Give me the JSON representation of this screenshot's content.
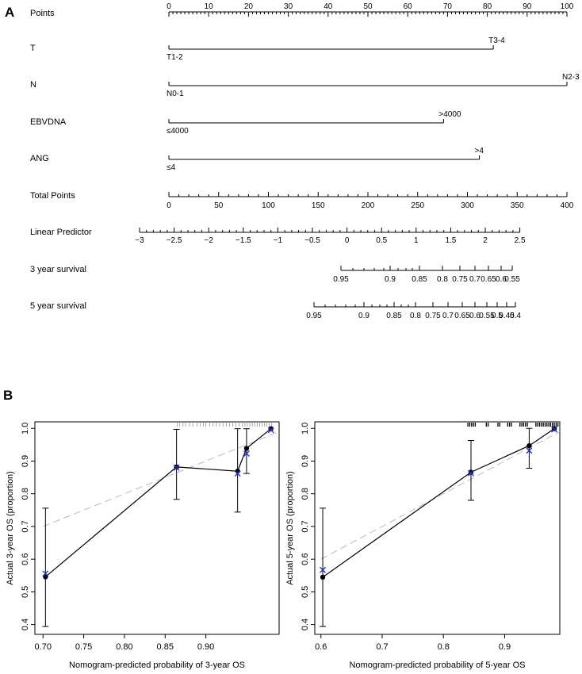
{
  "panel_a_label": "A",
  "panel_b_label": "B",
  "chart_data": [
    {
      "type": "nomogram",
      "panel": "A",
      "scales": [
        {
          "name": "Points",
          "range": [
            0,
            100
          ],
          "labels": [
            "0",
            "10",
            "20",
            "30",
            "40",
            "50",
            "60",
            "70",
            "80",
            "90",
            "100"
          ]
        },
        {
          "name": "T",
          "points_min": 0,
          "points_max": 81.5,
          "low_label": "T1-2",
          "high_label": "T3-4"
        },
        {
          "name": "N",
          "points_min": 0,
          "points_max": 100,
          "low_label": "N0-1",
          "high_label": "N2-3"
        },
        {
          "name": "EBVDNA",
          "points_min": 0,
          "points_max": 69,
          "low_label": "≤4000",
          "high_label": ">4000"
        },
        {
          "name": "ANG",
          "points_min": 0,
          "points_max": 78,
          "low_label": "≤4",
          "high_label": ">4"
        },
        {
          "name": "Total Points",
          "range": [
            0,
            400
          ],
          "labels": [
            "0",
            "50",
            "100",
            "150",
            "200",
            "250",
            "300",
            "350",
            "400"
          ]
        },
        {
          "name": "Linear Predictor",
          "labels": [
            "−3",
            "−2.5",
            "−2",
            "−1.5",
            "−1",
            "−0.5",
            "0",
            "0.5",
            "1",
            "1.5",
            "2",
            "2.5"
          ]
        },
        {
          "name": "3 year survival",
          "labels": [
            "0.95",
            "0.9",
            "0.85",
            "0.8",
            "0.75",
            "0.7",
            "0.65",
            "0.6",
            "0.55"
          ]
        },
        {
          "name": "5 year survival",
          "labels": [
            "0.95",
            "0.9",
            "0.85",
            "0.8",
            "0.75",
            "0.7",
            "0.65",
            "0.6",
            "0.55",
            "0.5",
            "0.45",
            "0.4"
          ]
        }
      ]
    },
    {
      "type": "scatter",
      "panel": "B-left",
      "xlabel": "Nomogram-predicted  probability of 3-year OS",
      "ylabel": "Actual 3-year OS (proportion)",
      "xlim": [
        0.69,
        0.99
      ],
      "ylim": [
        0.37,
        1.02
      ],
      "xticks": [
        "0.70",
        "0.75",
        "0.80",
        "0.85",
        "0.90"
      ],
      "yticks": [
        "0.4",
        "0.5",
        "0.6",
        "0.7",
        "0.8",
        "0.9",
        "1.0"
      ],
      "observed": [
        {
          "x": 0.703,
          "y": 0.546,
          "lo": 0.394,
          "hi": 0.756
        },
        {
          "x": 0.864,
          "y": 0.882,
          "lo": 0.783,
          "hi": 0.997
        },
        {
          "x": 0.939,
          "y": 0.869,
          "lo": 0.744,
          "hi": 0.999
        },
        {
          "x": 0.95,
          "y": 0.939,
          "lo": 0.862,
          "hi": 0.999
        },
        {
          "x": 0.98,
          "y": 0.999
        }
      ],
      "corrected": [
        {
          "x": 0.703,
          "y": 0.556
        },
        {
          "x": 0.864,
          "y": 0.88
        },
        {
          "x": 0.939,
          "y": 0.862
        },
        {
          "x": 0.95,
          "y": 0.923
        },
        {
          "x": 0.98,
          "y": 0.995
        }
      ],
      "rug": [
        0.865,
        0.868,
        0.872,
        0.875,
        0.88,
        0.884,
        0.889,
        0.893,
        0.897,
        0.9,
        0.905,
        0.909,
        0.913,
        0.917,
        0.921,
        0.925,
        0.929,
        0.933,
        0.937,
        0.941,
        0.945,
        0.948,
        0.951,
        0.954,
        0.957,
        0.96,
        0.963,
        0.966,
        0.969,
        0.972,
        0.975,
        0.978,
        0.981
      ]
    },
    {
      "type": "scatter",
      "panel": "B-right",
      "xlabel": "Nomogram-predicted  probability of 5-year OS",
      "ylabel": "Actual 5-year OS (proportion)",
      "xlim": [
        0.59,
        0.99
      ],
      "ylim": [
        0.37,
        1.02
      ],
      "xticks": [
        "0.6",
        "0.7",
        "0.8",
        "0.9"
      ],
      "yticks": [
        "0.4",
        "0.5",
        "0.6",
        "0.7",
        "0.8",
        "0.9",
        "1.0"
      ],
      "observed": [
        {
          "x": 0.603,
          "y": 0.545,
          "lo": 0.394,
          "hi": 0.756
        },
        {
          "x": 0.845,
          "y": 0.866,
          "lo": 0.78,
          "hi": 0.963
        },
        {
          "x": 0.94,
          "y": 0.947,
          "lo": 0.878,
          "hi": 1.0
        },
        {
          "x": 0.981,
          "y": 0.999
        }
      ],
      "corrected": [
        {
          "x": 0.603,
          "y": 0.567
        },
        {
          "x": 0.845,
          "y": 0.863
        },
        {
          "x": 0.94,
          "y": 0.932
        },
        {
          "x": 0.981,
          "y": 0.997
        }
      ],
      "rug": [
        0.84,
        0.843,
        0.846,
        0.849,
        0.852,
        0.87,
        0.873,
        0.889,
        0.892,
        0.905,
        0.908,
        0.911,
        0.925,
        0.928,
        0.931,
        0.934,
        0.937,
        0.951,
        0.954,
        0.957,
        0.96,
        0.963,
        0.966,
        0.969,
        0.972,
        0.975,
        0.978,
        0.981,
        0.984,
        0.987
      ]
    }
  ]
}
